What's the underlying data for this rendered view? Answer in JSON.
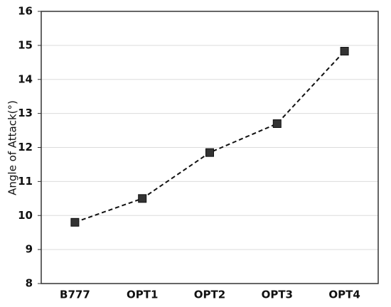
{
  "chart_data": {
    "type": "line",
    "y_label": "Angle of Attack(°)",
    "categories": [
      "B777",
      "OPT1",
      "OPT2",
      "OPT3",
      "OPT4"
    ],
    "values": [
      9.8,
      10.5,
      11.85,
      12.7,
      14.83
    ],
    "color": "#333333",
    "line_style": "dashed",
    "marker": "square",
    "ylim": [
      8,
      16
    ],
    "yticks": [
      8,
      9,
      10,
      11,
      12,
      13,
      14,
      15,
      16
    ],
    "grid": true
  }
}
